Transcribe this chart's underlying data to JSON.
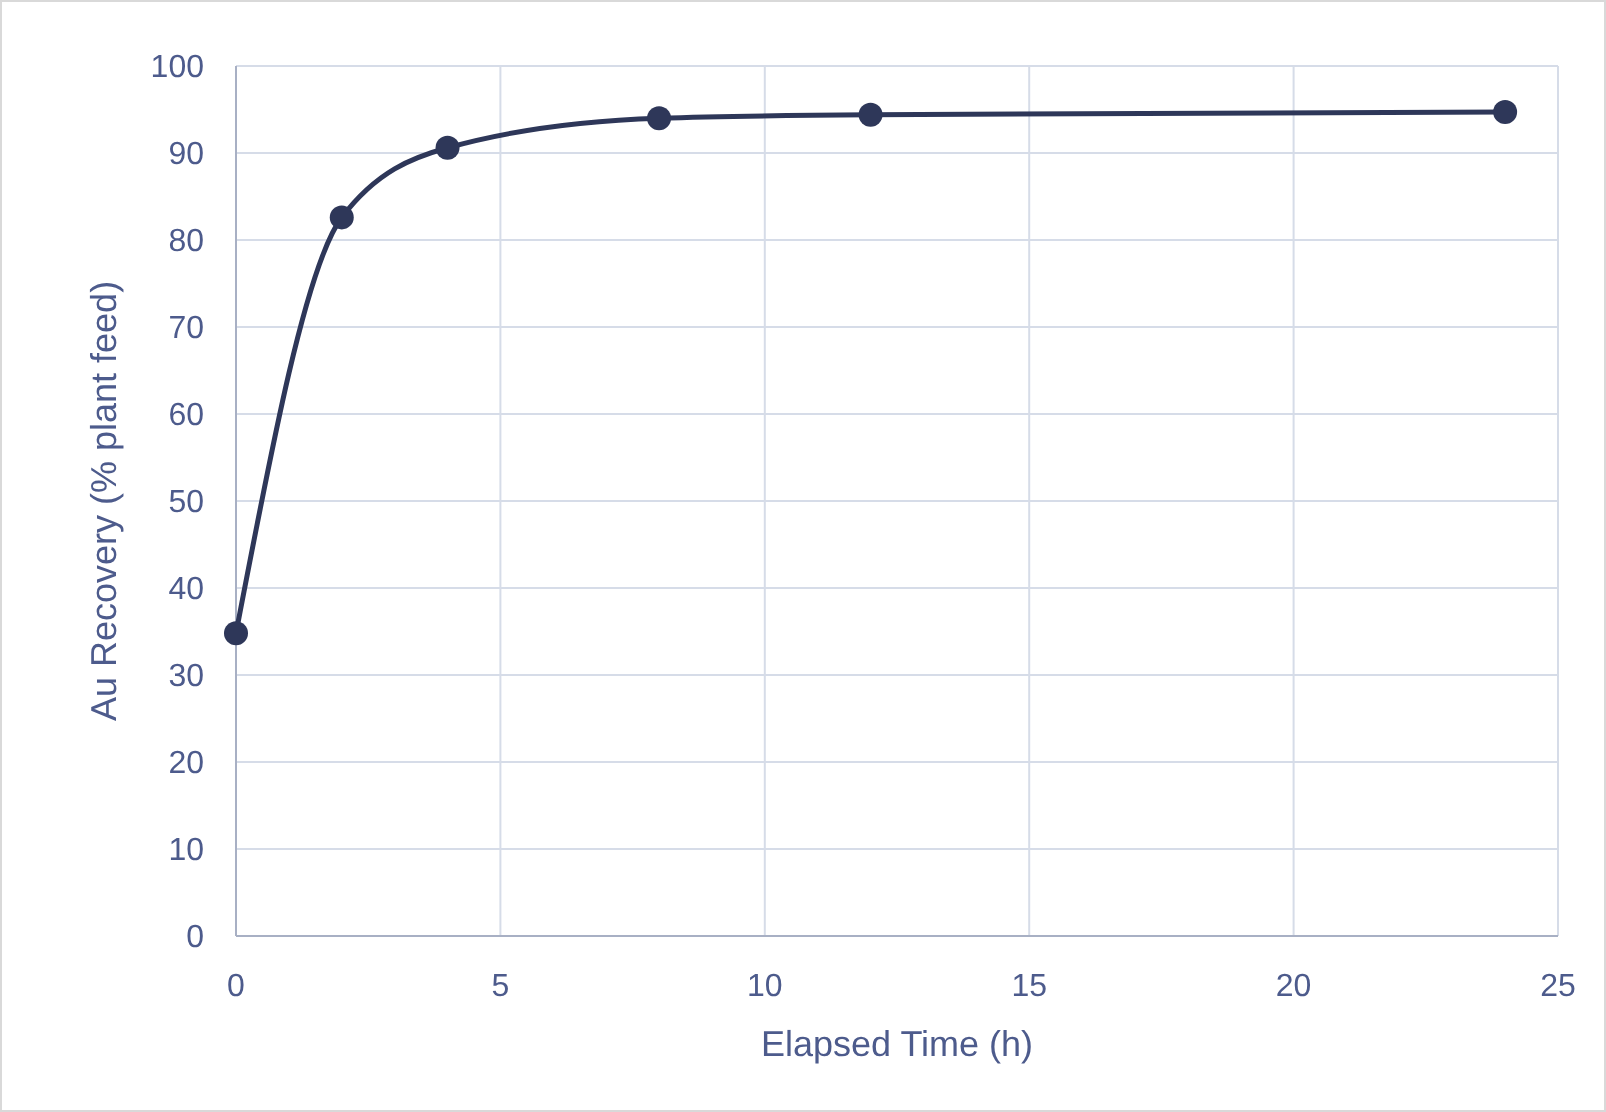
{
  "chart_data": {
    "type": "line",
    "xlabel": "Elapsed Time (h)",
    "ylabel": "Au Recovery (% plant feed)",
    "x": [
      0,
      2,
      4,
      8,
      12,
      24
    ],
    "series": [
      {
        "color": "#2e3759",
        "values": [
          34.8,
          82.6,
          90.6,
          94,
          94.4,
          94.7
        ]
      }
    ],
    "xlim": [
      0,
      25
    ],
    "xticks": [
      0,
      5,
      10,
      15,
      20,
      25
    ],
    "ylim": [
      0,
      100
    ],
    "yticks": [
      0,
      10,
      20,
      30,
      40,
      50,
      60,
      70,
      80,
      90,
      100
    ],
    "grid": true,
    "marker": "circle",
    "line_style": "solid"
  }
}
